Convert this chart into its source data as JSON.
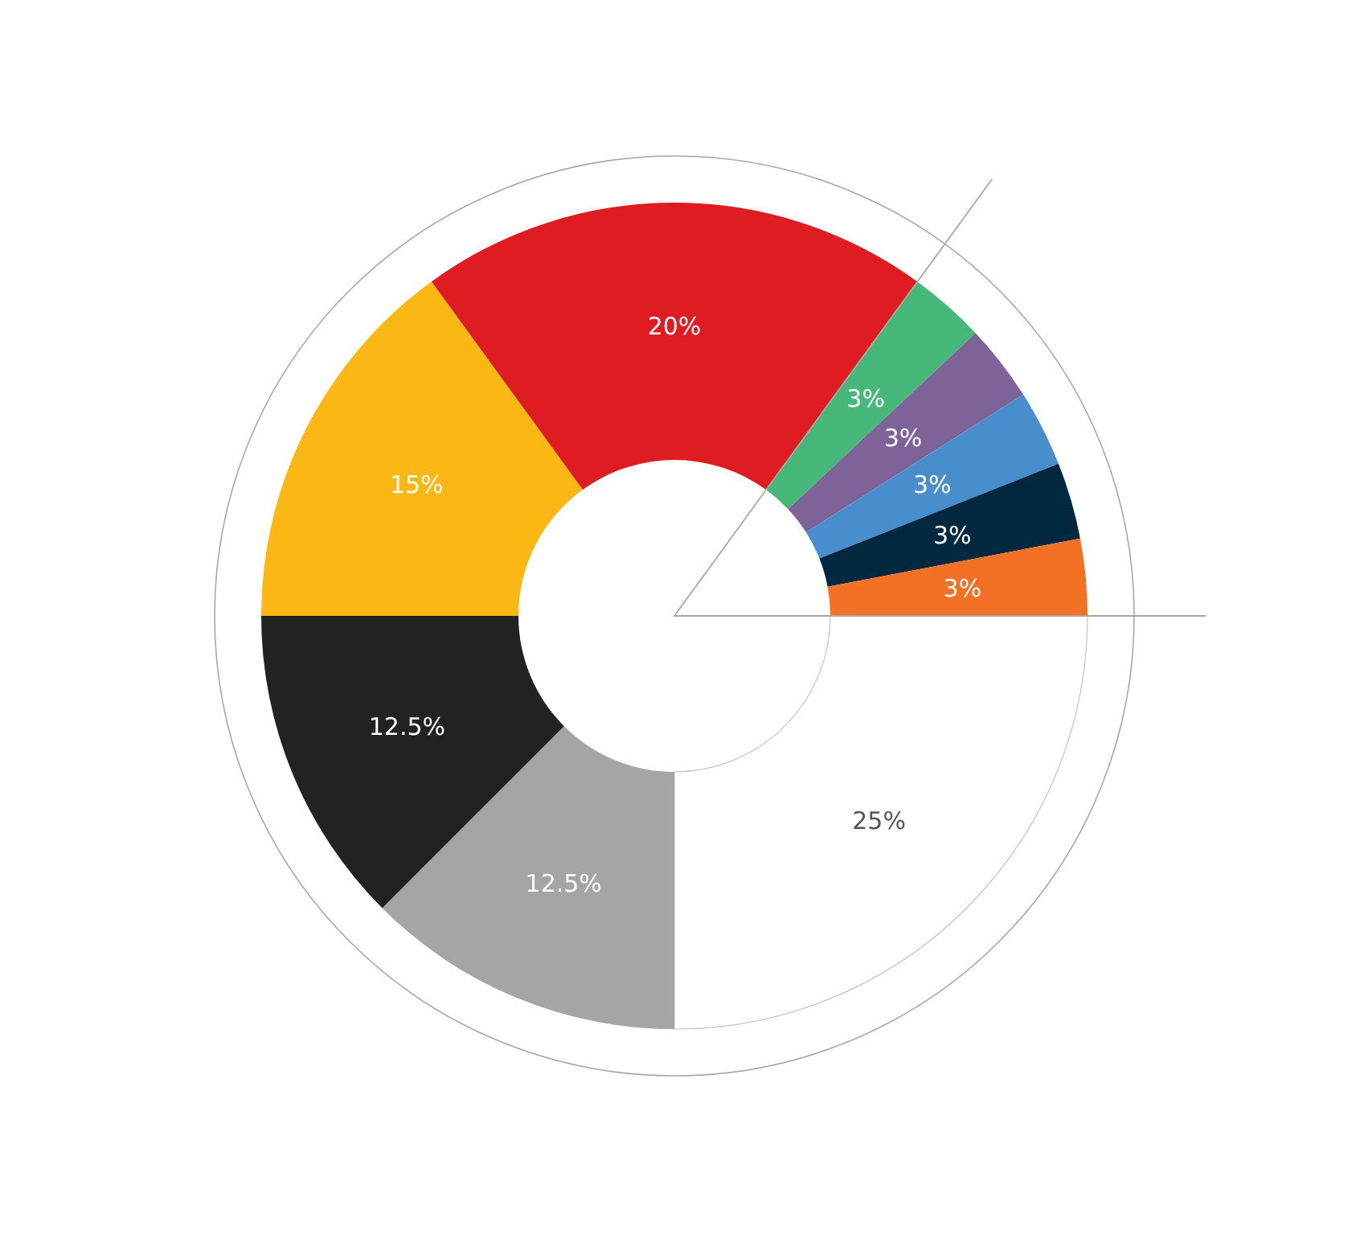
{
  "chart_data": {
    "type": "donut",
    "categories": [
      null,
      null,
      null,
      null,
      null,
      null,
      null,
      null,
      null,
      null
    ],
    "values": [
      25,
      12.5,
      12.5,
      15,
      20,
      3,
      3,
      3,
      3,
      3
    ],
    "colors": [
      "#ffffff",
      "#a5a5a6",
      "#222222",
      "#fbb815",
      "#e01c23",
      "#45b87a",
      "#7e6399",
      "#488ecc",
      "#02283f",
      "#f37125"
    ],
    "value_labels": [
      "25%",
      "12.5%",
      "12.5%",
      "15%",
      "20%",
      "3%",
      "3%",
      "3%",
      "3%",
      "3%"
    ]
  }
}
